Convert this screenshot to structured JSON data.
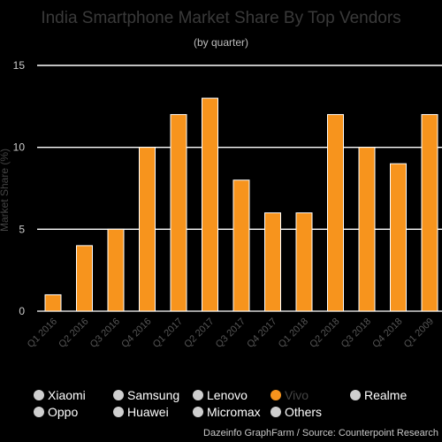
{
  "chart_data": {
    "type": "bar",
    "title": "India Smartphone Market Share By Top Vendors",
    "subtitle": "(by quarter)",
    "ylabel": "Market Share (%)",
    "xlabel": "",
    "ylim": [
      0,
      15
    ],
    "yticks": [
      0,
      5,
      10,
      15
    ],
    "grid": true,
    "categories": [
      "Q1 2016",
      "Q2 2016",
      "Q3 2016",
      "Q4 2016",
      "Q1 2017",
      "Q2 2017",
      "Q3 2017",
      "Q4 2017",
      "Q1 2018",
      "Q2 2018",
      "Q3 2018",
      "Q4 2018",
      "Q1 2009"
    ],
    "series": [
      {
        "name": "Vivo",
        "color": "#f7941d",
        "values": [
          1,
          4,
          5,
          10,
          12,
          13,
          8,
          6,
          6,
          12,
          10,
          9,
          12
        ]
      }
    ],
    "legend": {
      "placement": "bottom",
      "items": [
        {
          "label": "Xiaomi",
          "active": false
        },
        {
          "label": "Samsung",
          "active": false
        },
        {
          "label": "Lenovo",
          "active": false
        },
        {
          "label": "Vivo",
          "active": true
        },
        {
          "label": "Realme",
          "active": false
        },
        {
          "label": "Oppo",
          "active": false
        },
        {
          "label": "Huawei",
          "active": false
        },
        {
          "label": "Micromax",
          "active": false
        },
        {
          "label": "Others",
          "active": false
        }
      ]
    },
    "credit": "Dazeinfo GraphFarm / Source: Counterpoint Research"
  },
  "colors": {
    "background": "#000000",
    "bar": "#f7941d",
    "bar_stroke": "#ffffff",
    "legend_inactive_marker": "#cfcfcf",
    "legend_active_marker": "#f7941d"
  }
}
